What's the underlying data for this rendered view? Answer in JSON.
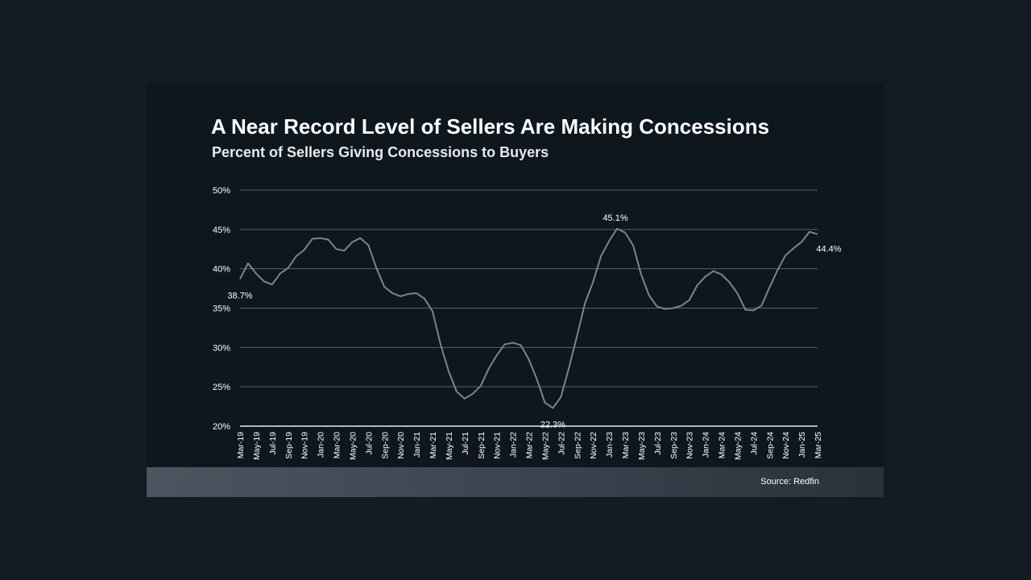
{
  "colors": {
    "background": "#141b23",
    "card": "#0f171e",
    "line": "#7b848c",
    "grid": "#5a6168",
    "text": "#ffffff"
  },
  "source": "Source: Redfin",
  "chart_data": {
    "type": "line",
    "title": "A Near Record Level of Sellers Are Making Concessions",
    "subtitle": "Percent of Sellers Giving Concessions to Buyers",
    "xlabel": "",
    "ylabel": "",
    "ylim": [
      20,
      50
    ],
    "yticks": [
      20,
      25,
      30,
      35,
      40,
      45,
      50
    ],
    "ytick_labels": [
      "20%",
      "25%",
      "30%",
      "35%",
      "40%",
      "45%",
      "50%"
    ],
    "grid": true,
    "xtick_labels": [
      "Mar-19",
      "May-19",
      "Jul-19",
      "Sep-19",
      "Nov-19",
      "Jan-20",
      "Mar-20",
      "May-20",
      "Jul-20",
      "Sep-20",
      "Nov-20",
      "Jan-21",
      "Mar-21",
      "May-21",
      "Jul-21",
      "Sep-21",
      "Nov-21",
      "Jan-22",
      "Mar-22",
      "May-22",
      "Jul-22",
      "Sep-22",
      "Nov-22",
      "Jan-23",
      "Mar-23",
      "May-23",
      "Jul-23",
      "Sep-23",
      "Nov-23",
      "Jan-24",
      "Mar-24",
      "May-24",
      "Jul-24",
      "Sep-24",
      "Nov-24",
      "Jan-25",
      "Mar-25"
    ],
    "x": [
      "Mar-19",
      "Apr-19",
      "May-19",
      "Jun-19",
      "Jul-19",
      "Aug-19",
      "Sep-19",
      "Oct-19",
      "Nov-19",
      "Dec-19",
      "Jan-20",
      "Feb-20",
      "Mar-20",
      "Apr-20",
      "May-20",
      "Jun-20",
      "Jul-20",
      "Aug-20",
      "Sep-20",
      "Oct-20",
      "Nov-20",
      "Dec-20",
      "Jan-21",
      "Feb-21",
      "Mar-21",
      "Apr-21",
      "May-21",
      "Jun-21",
      "Jul-21",
      "Aug-21",
      "Sep-21",
      "Oct-21",
      "Nov-21",
      "Dec-21",
      "Jan-22",
      "Feb-22",
      "Mar-22",
      "Apr-22",
      "May-22",
      "Jun-22",
      "Jul-22",
      "Aug-22",
      "Sep-22",
      "Oct-22",
      "Nov-22",
      "Dec-22",
      "Jan-23",
      "Feb-23",
      "Mar-23",
      "Apr-23",
      "May-23",
      "Jun-23",
      "Jul-23",
      "Aug-23",
      "Sep-23",
      "Oct-23",
      "Nov-23",
      "Dec-23",
      "Jan-24",
      "Feb-24",
      "Mar-24",
      "Apr-24",
      "May-24",
      "Jun-24",
      "Jul-24",
      "Aug-24",
      "Sep-24",
      "Oct-24",
      "Nov-24",
      "Dec-24",
      "Jan-25",
      "Feb-25",
      "Mar-25"
    ],
    "series": [
      {
        "values": [
          38.7,
          40.7,
          39.4,
          38.4,
          38.0,
          39.4,
          40.1,
          41.6,
          42.4,
          43.8,
          43.9,
          43.7,
          42.5,
          42.3,
          43.4,
          43.9,
          43.0,
          40.1,
          37.7,
          36.9,
          36.5,
          36.8,
          36.9,
          36.2,
          34.6,
          30.4,
          27.0,
          24.4,
          23.5,
          24.1,
          25.1,
          27.3,
          29.0,
          30.4,
          30.6,
          30.3,
          28.5,
          26.0,
          23.0,
          22.3,
          23.7,
          27.4,
          31.4,
          35.6,
          38.3,
          41.6,
          43.5,
          45.1,
          44.6,
          43.0,
          39.3,
          36.6,
          35.2,
          34.9,
          35.0,
          35.3,
          36.0,
          37.9,
          39.0,
          39.7,
          39.3,
          38.3,
          36.9,
          34.8,
          34.7,
          35.3,
          37.6,
          39.8,
          41.7,
          42.6,
          43.4,
          44.7,
          44.4
        ]
      }
    ],
    "annotations": [
      {
        "label": "38.7%",
        "x": "Mar-19",
        "y": 38.7
      },
      {
        "label": "45.1%",
        "x": "Feb-23",
        "y": 45.1
      },
      {
        "label": "22.3%",
        "x": "Jun-22",
        "y": 22.3
      },
      {
        "label": "44.4%",
        "x": "Mar-25",
        "y": 44.4
      }
    ]
  }
}
